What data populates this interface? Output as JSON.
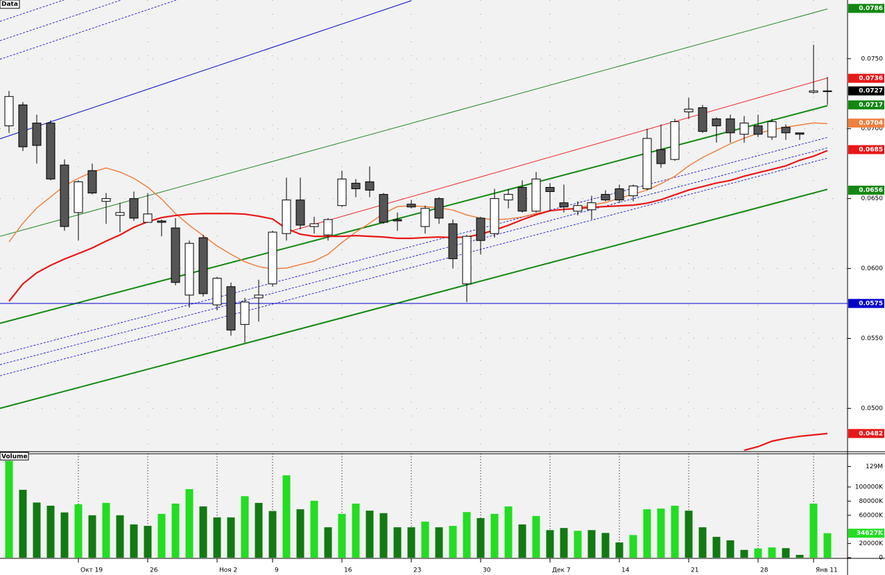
{
  "chart_data": [
    {
      "type": "candlestick",
      "title": "Data",
      "open": [
        0.0702,
        0.0717,
        0.0704,
        0.0704,
        0.0674,
        0.064,
        0.067,
        0.0648,
        0.0638,
        0.065,
        0.0633,
        0.0634,
        0.0629,
        0.0581,
        0.0622,
        0.0574,
        0.0587,
        0.056,
        0.0579,
        0.0589,
        0.0625,
        0.0649,
        0.063,
        0.0624,
        0.0645,
        0.0661,
        0.0662,
        0.0653,
        0.0635,
        0.0646,
        0.063,
        0.065,
        0.0632,
        0.0589,
        0.0636,
        0.0625,
        0.0649,
        0.0658,
        0.0641,
        0.0658,
        0.0647,
        0.0641,
        0.0642,
        0.0653,
        0.0657,
        0.0652,
        0.0657,
        0.0685,
        0.0678,
        0.0712,
        0.0715,
        0.0707,
        0.0707,
        0.0696,
        0.0702,
        0.0694,
        0.0701,
        0.0697,
        0.0726,
        0.0727
      ],
      "high": [
        0.0727,
        0.0719,
        0.071,
        0.0706,
        0.0678,
        0.0663,
        0.0675,
        0.0654,
        0.0647,
        0.0655,
        0.0654,
        0.0635,
        0.0636,
        0.062,
        0.0624,
        0.0594,
        0.059,
        0.0579,
        0.0592,
        0.0627,
        0.0665,
        0.0665,
        0.0637,
        0.0636,
        0.067,
        0.0664,
        0.0673,
        0.0654,
        0.064,
        0.0649,
        0.0645,
        0.0651,
        0.0635,
        0.0624,
        0.0637,
        0.0657,
        0.0657,
        0.0663,
        0.0669,
        0.0661,
        0.066,
        0.0648,
        0.0652,
        0.0656,
        0.066,
        0.066,
        0.07,
        0.0703,
        0.0707,
        0.0722,
        0.0717,
        0.0708,
        0.071,
        0.0709,
        0.071,
        0.0707,
        0.0703,
        0.0697,
        0.076,
        0.0737
      ],
      "low": [
        0.0697,
        0.0684,
        0.0675,
        0.0663,
        0.0627,
        0.062,
        0.0653,
        0.0632,
        0.0626,
        0.0634,
        0.0633,
        0.0623,
        0.0588,
        0.0572,
        0.058,
        0.057,
        0.0552,
        0.0547,
        0.0562,
        0.0587,
        0.062,
        0.0628,
        0.0625,
        0.062,
        0.0644,
        0.0651,
        0.0651,
        0.0632,
        0.0627,
        0.0643,
        0.0625,
        0.0632,
        0.06,
        0.0576,
        0.061,
        0.0622,
        0.0643,
        0.064,
        0.064,
        0.0641,
        0.064,
        0.0638,
        0.0635,
        0.0648,
        0.0647,
        0.0648,
        0.0656,
        0.0672,
        0.0677,
        0.0707,
        0.0697,
        0.069,
        0.069,
        0.069,
        0.0694,
        0.0692,
        0.0692,
        0.0692,
        0.0725,
        0.0717
      ],
      "close": [
        0.0723,
        0.0687,
        0.0688,
        0.0664,
        0.063,
        0.0662,
        0.0654,
        0.065,
        0.064,
        0.0636,
        0.0639,
        0.0633,
        0.059,
        0.0618,
        0.0582,
        0.0593,
        0.0556,
        0.0576,
        0.0581,
        0.0626,
        0.0649,
        0.0631,
        0.0632,
        0.0635,
        0.0664,
        0.0657,
        0.0656,
        0.0633,
        0.0634,
        0.0644,
        0.0643,
        0.0636,
        0.0607,
        0.0623,
        0.062,
        0.065,
        0.0653,
        0.0641,
        0.0664,
        0.0655,
        0.0644,
        0.0645,
        0.0647,
        0.0649,
        0.0649,
        0.0659,
        0.0693,
        0.0675,
        0.0705,
        0.0714,
        0.0698,
        0.0702,
        0.0697,
        0.0704,
        0.0696,
        0.0705,
        0.0697,
        0.0696,
        0.0727,
        0.0727
      ],
      "up_color": "#ffffff",
      "down_color": "#555555",
      "ylim": [
        0.0469,
        0.0792
      ],
      "yticks": [
        {
          "value": 0.05,
          "label": "0.0500"
        },
        {
          "value": 0.055,
          "label": "0.0550"
        },
        {
          "value": 0.06,
          "label": "0.0600"
        },
        {
          "value": 0.065,
          "label": "0.0650"
        },
        {
          "value": 0.07,
          "label": "0.0700"
        },
        {
          "value": 0.075,
          "label": "0.0750"
        }
      ],
      "grid": true,
      "lines": [
        {
          "color": "#f08040",
          "width": 1.5,
          "values": [
            0.0619,
            0.06324,
            0.06433,
            0.06512,
            0.06591,
            0.06645,
            0.0669,
            0.06719,
            0.0669,
            0.06645,
            0.06581,
            0.06497,
            0.06393,
            0.06309,
            0.06235,
            0.06161,
            0.06102,
            0.06048,
            0.06013,
            0.05998,
            0.06003,
            0.06028,
            0.06053,
            0.06102,
            0.06186,
            0.0626,
            0.06324,
            0.06393,
            0.06443,
            0.06448,
            0.06443,
            0.06433,
            0.06418,
            0.06383,
            0.06359,
            0.06349,
            0.06354,
            0.06369,
            0.06393,
            0.06413,
            0.06423,
            0.06433,
            0.06453,
            0.06472,
            0.06502,
            0.06532,
            0.06561,
            0.06606,
            0.0666,
            0.06734,
            0.06794,
            0.06843,
            0.06892,
            0.06932,
            0.06967,
            0.06991,
            0.07011,
            0.07026,
            0.07041,
            0.07036
          ]
        },
        {
          "color": "#e81818",
          "width": 2.2,
          "values": [
            0.05766,
            0.0589,
            0.05969,
            0.06023,
            0.06068,
            0.06107,
            0.06147,
            0.06196,
            0.0624,
            0.06295,
            0.06334,
            0.06364,
            0.06379,
            0.06389,
            0.06393,
            0.06393,
            0.06393,
            0.06389,
            0.06374,
            0.06354,
            0.06285,
            0.06245,
            0.0623,
            0.0623,
            0.0623,
            0.06235,
            0.0623,
            0.06225,
            0.06216,
            0.06216,
            0.06221,
            0.06225,
            0.06221,
            0.06225,
            0.06245,
            0.06275,
            0.06309,
            0.06349,
            0.06384,
            0.06413,
            0.06423,
            0.06428,
            0.06438,
            0.06443,
            0.06448,
            0.06453,
            0.06467,
            0.06492,
            0.06527,
            0.06561,
            0.06586,
            0.06611,
            0.0663,
            0.0666,
            0.06685,
            0.06709,
            0.06734,
            0.06774,
            0.06803,
            0.06843
          ]
        },
        {
          "color": "#e81818",
          "width": 2.2,
          "values": [
            null,
            null,
            null,
            null,
            null,
            null,
            null,
            null,
            null,
            null,
            null,
            null,
            null,
            null,
            null,
            null,
            null,
            null,
            null,
            null,
            null,
            null,
            null,
            null,
            null,
            null,
            null,
            null,
            null,
            null,
            null,
            null,
            null,
            null,
            null,
            null,
            null,
            null,
            null,
            null,
            null,
            null,
            null,
            null,
            null,
            null,
            null,
            null,
            null,
            null,
            null,
            null,
            null,
            0.047,
            0.04726,
            0.04765,
            0.04785,
            0.048,
            0.0481,
            0.0482
          ]
        }
      ],
      "trendlines": [
        {
          "color": "#0000cc",
          "width": 1,
          "dash": false,
          "x": [
            -0.65,
            29
          ],
          "y": [
            0.06927,
            0.07915
          ]
        },
        {
          "color": "#0000cc",
          "width": 0.8,
          "dash": true,
          "x": [
            -0.65,
            20
          ],
          "y": [
            0.07767,
            0.08455
          ]
        },
        {
          "color": "#0000cc",
          "width": 0.8,
          "dash": true,
          "x": [
            -0.65,
            20
          ],
          "y": [
            0.07629,
            0.08317
          ]
        },
        {
          "color": "#0000cc",
          "width": 0.8,
          "dash": true,
          "x": [
            -0.65,
            20
          ],
          "y": [
            0.07496,
            0.08184
          ]
        },
        {
          "color": "#228822",
          "width": 1,
          "dash": false,
          "x": [
            -0.65,
            59
          ],
          "y": [
            0.0623,
            0.07856
          ]
        },
        {
          "color": "#ee2222",
          "width": 1,
          "dash": false,
          "x": [
            19.85,
            59
          ],
          "y": [
            0.06255,
            0.07362
          ]
        },
        {
          "color": "#118811",
          "width": 2,
          "dash": false,
          "x": [
            -0.65,
            59
          ],
          "y": [
            0.05608,
            0.07164
          ]
        },
        {
          "color": "#118811",
          "width": 2,
          "dash": false,
          "x": [
            -0.65,
            59
          ],
          "y": [
            0.05,
            0.06566
          ]
        },
        {
          "color": "#0000cc",
          "width": 0.8,
          "dash": true,
          "x": [
            -0.65,
            59
          ],
          "y": [
            0.05386,
            0.06937
          ]
        },
        {
          "color": "#0000cc",
          "width": 0.8,
          "dash": true,
          "x": [
            -0.65,
            59
          ],
          "y": [
            0.05312,
            0.06863
          ]
        },
        {
          "color": "#0000cc",
          "width": 0.8,
          "dash": true,
          "x": [
            -0.65,
            59
          ],
          "y": [
            0.05233,
            0.06789
          ]
        }
      ],
      "markers": [
        {
          "value": 0.0786,
          "color": "#118811"
        },
        {
          "value": 0.0736,
          "color": "#e81818"
        },
        {
          "value": 0.0727,
          "color": "#000000"
        },
        {
          "value": 0.0717,
          "color": "#118811"
        },
        {
          "value": 0.0704,
          "color": "#f08040"
        },
        {
          "value": 0.0685,
          "color": "#e81818"
        },
        {
          "value": 0.0656,
          "color": "#118811"
        },
        {
          "value": 0.0575,
          "color": "#0000cc",
          "hline": true
        },
        {
          "value": 0.0482,
          "color": "#e81818"
        }
      ]
    },
    {
      "type": "bar",
      "title": "Volume",
      "categories": [
        null,
        null,
        null,
        null,
        null,
        "Окт 19",
        null,
        null,
        null,
        null,
        "26",
        null,
        null,
        null,
        null,
        "Ноя 2",
        null,
        null,
        null,
        "9",
        null,
        null,
        null,
        null,
        "16",
        null,
        null,
        null,
        null,
        "23",
        null,
        null,
        null,
        null,
        "30",
        null,
        null,
        null,
        null,
        "Дек 7",
        null,
        null,
        null,
        null,
        "14",
        null,
        null,
        null,
        null,
        "21",
        null,
        null,
        null,
        null,
        "28",
        null,
        null,
        null,
        "Янв 11",
        null
      ],
      "values": [
        137000,
        96000,
        78000,
        73500,
        64000,
        75500,
        60000,
        77500,
        60000,
        47000,
        45000,
        62000,
        76500,
        97000,
        72500,
        57000,
        57000,
        87000,
        77500,
        66000,
        116500,
        68500,
        80500,
        43000,
        62000,
        76500,
        66500,
        63000,
        43000,
        43000,
        51000,
        43000,
        45000,
        64500,
        56000,
        62000,
        72500,
        47000,
        59000,
        39000,
        42000,
        38000,
        39000,
        35000,
        21500,
        32000,
        68500,
        69500,
        73500,
        66500,
        43000,
        29500,
        24500,
        11000,
        13000,
        14500,
        13500,
        4000,
        76500,
        34627
      ],
      "colors": [
        "#22dd22",
        "#117a11",
        "#117a11",
        "#117a11",
        "#117a11",
        "#22dd22",
        "#117a11",
        "#22dd22",
        "#117a11",
        "#117a11",
        "#117a11",
        "#22dd22",
        "#22dd22",
        "#22dd22",
        "#117a11",
        "#117a11",
        "#117a11",
        "#22dd22",
        "#117a11",
        "#117a11",
        "#22dd22",
        "#117a11",
        "#22dd22",
        "#117a11",
        "#22dd22",
        "#22dd22",
        "#117a11",
        "#117a11",
        "#117a11",
        "#117a11",
        "#22dd22",
        "#117a11",
        "#22dd22",
        "#22dd22",
        "#117a11",
        "#22dd22",
        "#22dd22",
        "#117a11",
        "#22dd22",
        "#117a11",
        "#117a11",
        "#22dd22",
        "#117a11",
        "#117a11",
        "#117a11",
        "#22dd22",
        "#22dd22",
        "#22dd22",
        "#22dd22",
        "#117a11",
        "#117a11",
        "#117a11",
        "#117a11",
        "#117a11",
        "#22dd22",
        "#22dd22",
        "#117a11",
        "#117a11",
        "#22dd22",
        "#22dd22"
      ],
      "ylim": [
        0,
        147000
      ],
      "yticks": [
        0,
        {
          "value": 20000,
          "label": "20000K"
        },
        {
          "value": 60000,
          "label": "60000K"
        },
        {
          "value": 80000,
          "label": "80000K"
        },
        {
          "value": 100000,
          "label": "100000K"
        },
        {
          "value": 129000,
          "label": "129M"
        }
      ],
      "markers": [
        {
          "value": 34627,
          "label": "34627K",
          "color": "#22dd22"
        }
      ]
    }
  ]
}
